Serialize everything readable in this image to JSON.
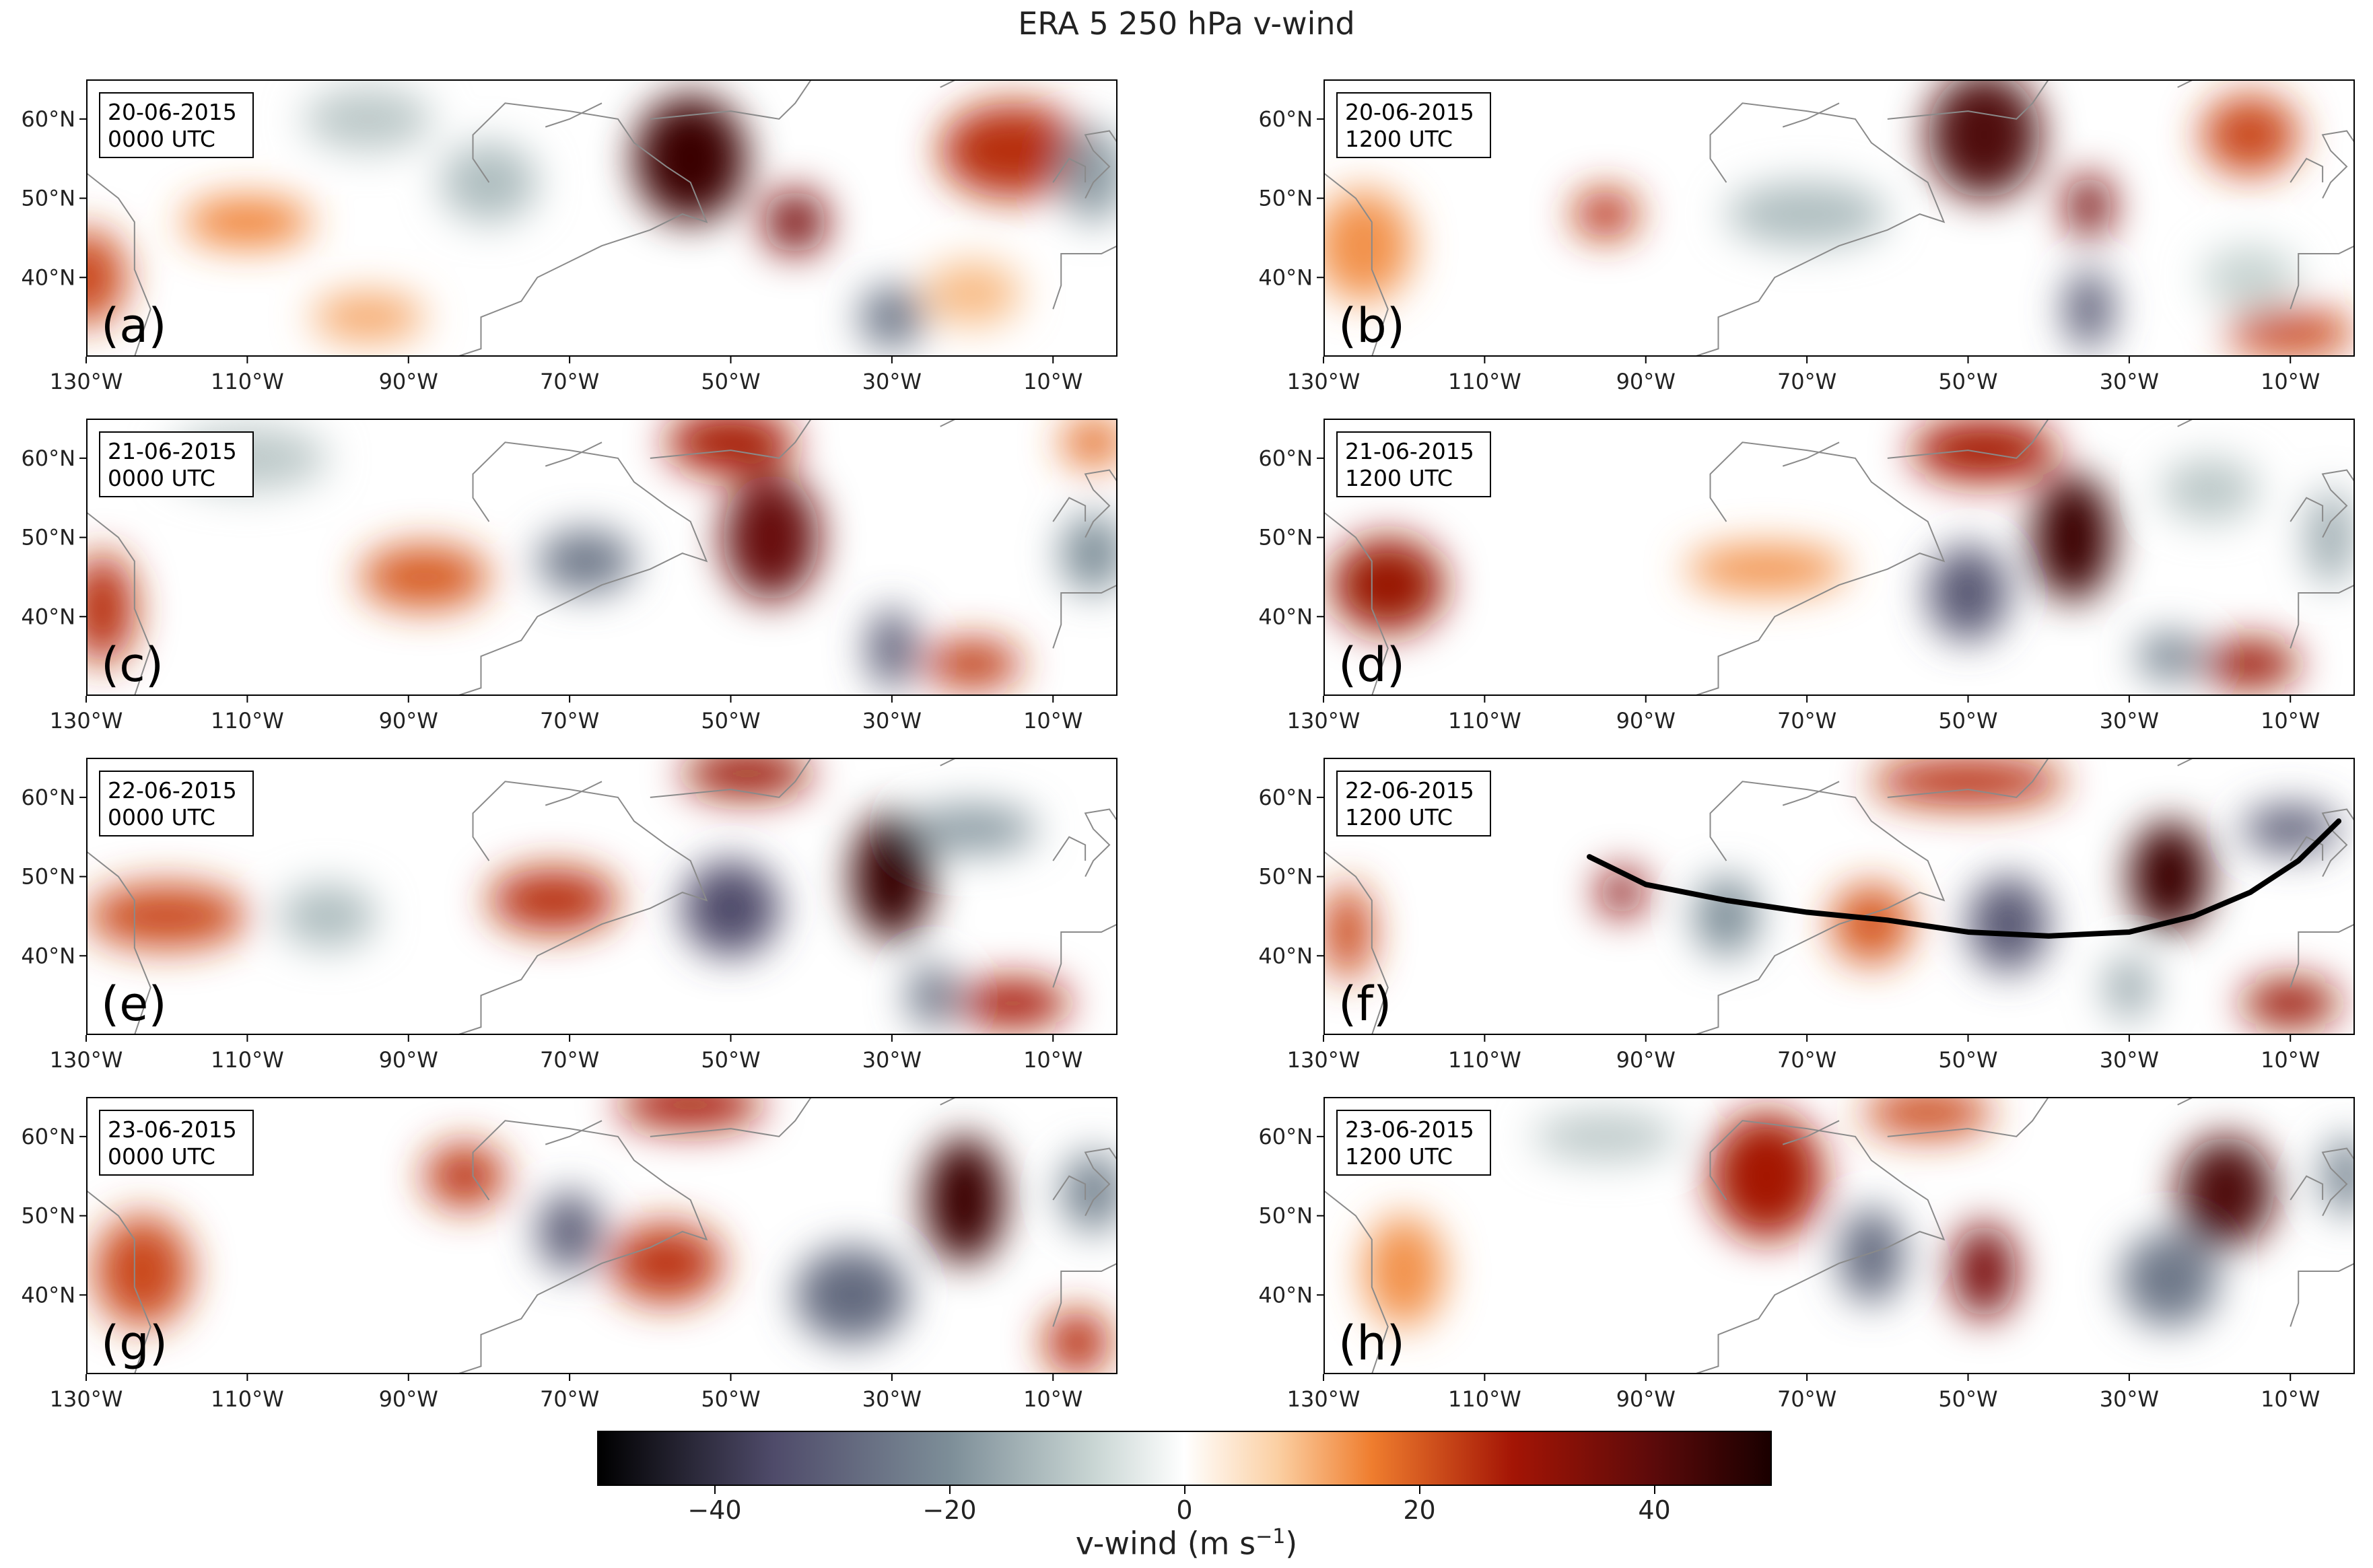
{
  "title": "ERA 5 250 hPa v-wind",
  "chart_data": {
    "type": "heatmap",
    "title": "ERA 5 250 hPa v-wind",
    "projection": "lon-lat map",
    "xlim": [
      -130,
      -2
    ],
    "ylim": [
      30,
      65
    ],
    "x_ticks": [
      -130,
      -110,
      -90,
      -70,
      -50,
      -30,
      -10
    ],
    "x_tick_labels": [
      "130°W",
      "110°W",
      "90°W",
      "70°W",
      "50°W",
      "30°W",
      "10°W"
    ],
    "y_ticks": [
      40,
      50,
      60
    ],
    "y_tick_labels": [
      "40°N",
      "50°N",
      "60°N"
    ],
    "colormap": {
      "range": [
        -50,
        50
      ],
      "stops": [
        {
          "v": -50,
          "c": "#000000"
        },
        {
          "v": -35,
          "c": "#4f4b6a"
        },
        {
          "v": -20,
          "c": "#7d8e98"
        },
        {
          "v": -8,
          "c": "#c7d4d2"
        },
        {
          "v": 0,
          "c": "#ffffff"
        },
        {
          "v": 8,
          "c": "#fbcfa2"
        },
        {
          "v": 16,
          "c": "#ef7d2e"
        },
        {
          "v": 28,
          "c": "#a41505"
        },
        {
          "v": 40,
          "c": "#5c0a0a"
        },
        {
          "v": 50,
          "c": "#1a0000"
        }
      ]
    },
    "colorbar": {
      "ticks": [
        -40,
        -20,
        0,
        20,
        40
      ],
      "tick_labels": [
        "−40",
        "−20",
        "0",
        "20",
        "40"
      ],
      "label_main": "v-wind (m s",
      "label_sup": "−1",
      "label_end": ")"
    },
    "panels": [
      {
        "letter": "(a)",
        "date": "20-06-2015",
        "time": "0000 UTC",
        "features": [
          {
            "lon": -55,
            "lat": 55,
            "v": 45,
            "rx": 7,
            "ry": 8
          },
          {
            "lon": -42,
            "lat": 47,
            "v": 35,
            "rx": 4,
            "ry": 4
          },
          {
            "lon": -15,
            "lat": 56,
            "v": 25,
            "rx": 9,
            "ry": 6
          },
          {
            "lon": -130,
            "lat": 40,
            "v": 22,
            "rx": 5,
            "ry": 6
          },
          {
            "lon": -110,
            "lat": 47,
            "v": 16,
            "rx": 8,
            "ry": 3
          },
          {
            "lon": -95,
            "lat": 35,
            "v": 12,
            "rx": 7,
            "ry": 3
          },
          {
            "lon": -20,
            "lat": 38,
            "v": 10,
            "rx": 6,
            "ry": 4
          },
          {
            "lon": -30,
            "lat": 35,
            "v": -25,
            "rx": 4,
            "ry": 4
          },
          {
            "lon": -80,
            "lat": 52,
            "v": -12,
            "rx": 6,
            "ry": 5
          },
          {
            "lon": -5,
            "lat": 53,
            "v": -18,
            "rx": 4,
            "ry": 6
          },
          {
            "lon": -95,
            "lat": 60,
            "v": -10,
            "rx": 8,
            "ry": 4
          }
        ]
      },
      {
        "letter": "(b)",
        "date": "20-06-2015",
        "time": "1200 UTC",
        "features": [
          {
            "lon": -48,
            "lat": 58,
            "v": 42,
            "rx": 7,
            "ry": 8
          },
          {
            "lon": -35,
            "lat": 49,
            "v": 35,
            "rx": 3,
            "ry": 4
          },
          {
            "lon": -15,
            "lat": 58,
            "v": 22,
            "rx": 6,
            "ry": 5
          },
          {
            "lon": -95,
            "lat": 48,
            "v": 25,
            "rx": 4,
            "ry": 3
          },
          {
            "lon": -125,
            "lat": 44,
            "v": 14,
            "rx": 6,
            "ry": 7
          },
          {
            "lon": -10,
            "lat": 33,
            "v": 22,
            "rx": 8,
            "ry": 3
          },
          {
            "lon": -70,
            "lat": 48,
            "v": -12,
            "rx": 10,
            "ry": 4
          },
          {
            "lon": -35,
            "lat": 36,
            "v": -30,
            "rx": 3,
            "ry": 5
          },
          {
            "lon": -15,
            "lat": 40,
            "v": -8,
            "rx": 6,
            "ry": 4
          }
        ]
      },
      {
        "letter": "(c)",
        "date": "21-06-2015",
        "time": "0000 UTC",
        "features": [
          {
            "lon": -45,
            "lat": 50,
            "v": 38,
            "rx": 6,
            "ry": 8
          },
          {
            "lon": -50,
            "lat": 62,
            "v": 28,
            "rx": 8,
            "ry": 4
          },
          {
            "lon": -128,
            "lat": 41,
            "v": 25,
            "rx": 4,
            "ry": 7
          },
          {
            "lon": -88,
            "lat": 45,
            "v": 20,
            "rx": 8,
            "ry": 4
          },
          {
            "lon": -20,
            "lat": 34,
            "v": 24,
            "rx": 6,
            "ry": 3
          },
          {
            "lon": -5,
            "lat": 62,
            "v": 18,
            "rx": 4,
            "ry": 3
          },
          {
            "lon": -68,
            "lat": 47,
            "v": -25,
            "rx": 6,
            "ry": 4
          },
          {
            "lon": -30,
            "lat": 36,
            "v": -30,
            "rx": 3,
            "ry": 5
          },
          {
            "lon": -5,
            "lat": 48,
            "v": -20,
            "rx": 4,
            "ry": 5
          },
          {
            "lon": -110,
            "lat": 60,
            "v": -10,
            "rx": 10,
            "ry": 4
          }
        ]
      },
      {
        "letter": "(d)",
        "date": "21-06-2015",
        "time": "1200 UTC",
        "features": [
          {
            "lon": -37,
            "lat": 50,
            "v": 45,
            "rx": 5,
            "ry": 8
          },
          {
            "lon": -48,
            "lat": 61,
            "v": 28,
            "rx": 9,
            "ry": 4
          },
          {
            "lon": -122,
            "lat": 44,
            "v": 30,
            "rx": 7,
            "ry": 6
          },
          {
            "lon": -75,
            "lat": 46,
            "v": 14,
            "rx": 10,
            "ry": 3
          },
          {
            "lon": -15,
            "lat": 34,
            "v": 30,
            "rx": 6,
            "ry": 3
          },
          {
            "lon": -50,
            "lat": 43,
            "v": -32,
            "rx": 5,
            "ry": 6
          },
          {
            "lon": -25,
            "lat": 35,
            "v": -22,
            "rx": 4,
            "ry": 3
          },
          {
            "lon": -20,
            "lat": 56,
            "v": -10,
            "rx": 6,
            "ry": 4
          },
          {
            "lon": -5,
            "lat": 50,
            "v": -15,
            "rx": 3,
            "ry": 6
          }
        ]
      },
      {
        "letter": "(e)",
        "date": "22-06-2015",
        "time": "0000 UTC",
        "features": [
          {
            "lon": -30,
            "lat": 50,
            "v": 46,
            "rx": 5,
            "ry": 8
          },
          {
            "lon": -48,
            "lat": 63,
            "v": 30,
            "rx": 8,
            "ry": 3
          },
          {
            "lon": -120,
            "lat": 45,
            "v": 22,
            "rx": 10,
            "ry": 4
          },
          {
            "lon": -72,
            "lat": 47,
            "v": 25,
            "rx": 8,
            "ry": 4
          },
          {
            "lon": -15,
            "lat": 34,
            "v": 28,
            "rx": 7,
            "ry": 3
          },
          {
            "lon": -50,
            "lat": 46,
            "v": -35,
            "rx": 6,
            "ry": 6
          },
          {
            "lon": -100,
            "lat": 45,
            "v": -12,
            "rx": 6,
            "ry": 4
          },
          {
            "lon": -20,
            "lat": 56,
            "v": -18,
            "rx": 8,
            "ry": 3
          },
          {
            "lon": -25,
            "lat": 35,
            "v": -25,
            "rx": 3,
            "ry": 4
          }
        ]
      },
      {
        "letter": "(f)",
        "date": "22-06-2015",
        "time": "1200 UTC",
        "features": [
          {
            "lon": -25,
            "lat": 50,
            "v": 45,
            "rx": 5,
            "ry": 7
          },
          {
            "lon": -50,
            "lat": 62,
            "v": 25,
            "rx": 12,
            "ry": 3
          },
          {
            "lon": -93,
            "lat": 48,
            "v": 32,
            "rx": 3,
            "ry": 3
          },
          {
            "lon": -62,
            "lat": 44,
            "v": 20,
            "rx": 5,
            "ry": 5
          },
          {
            "lon": -127,
            "lat": 43,
            "v": 22,
            "rx": 3,
            "ry": 6
          },
          {
            "lon": -10,
            "lat": 34,
            "v": 30,
            "rx": 6,
            "ry": 3
          },
          {
            "lon": -45,
            "lat": 44,
            "v": -32,
            "rx": 5,
            "ry": 6
          },
          {
            "lon": -80,
            "lat": 45,
            "v": -20,
            "rx": 4,
            "ry": 5
          },
          {
            "lon": -10,
            "lat": 56,
            "v": -30,
            "rx": 6,
            "ry": 3
          },
          {
            "lon": -30,
            "lat": 36,
            "v": -15,
            "rx": 3,
            "ry": 4
          }
        ],
        "trajectory": [
          [
            -97,
            52.5
          ],
          [
            -90,
            49
          ],
          [
            -80,
            47
          ],
          [
            -70,
            45.5
          ],
          [
            -60,
            44.5
          ],
          [
            -50,
            43
          ],
          [
            -40,
            42.5
          ],
          [
            -30,
            43
          ],
          [
            -22,
            45
          ],
          [
            -15,
            48
          ],
          [
            -9,
            52
          ],
          [
            -4,
            57
          ]
        ]
      },
      {
        "letter": "(g)",
        "date": "23-06-2015",
        "time": "0000 UTC",
        "features": [
          {
            "lon": -21,
            "lat": 52,
            "v": 45,
            "rx": 5,
            "ry": 8
          },
          {
            "lon": -55,
            "lat": 64,
            "v": 28,
            "rx": 9,
            "ry": 3
          },
          {
            "lon": -123,
            "lat": 43,
            "v": 22,
            "rx": 6,
            "ry": 7
          },
          {
            "lon": -83,
            "lat": 55,
            "v": 24,
            "rx": 5,
            "ry": 4
          },
          {
            "lon": -58,
            "lat": 44,
            "v": 24,
            "rx": 7,
            "ry": 5
          },
          {
            "lon": -7,
            "lat": 34,
            "v": 25,
            "rx": 4,
            "ry": 4
          },
          {
            "lon": -70,
            "lat": 48,
            "v": -30,
            "rx": 4,
            "ry": 5
          },
          {
            "lon": -35,
            "lat": 40,
            "v": -28,
            "rx": 7,
            "ry": 6
          },
          {
            "lon": -5,
            "lat": 53,
            "v": -22,
            "rx": 4,
            "ry": 5
          }
        ]
      },
      {
        "letter": "(h)",
        "date": "23-06-2015",
        "time": "1200 UTC",
        "features": [
          {
            "lon": -18,
            "lat": 53,
            "v": 42,
            "rx": 6,
            "ry": 7
          },
          {
            "lon": -48,
            "lat": 43,
            "v": 35,
            "rx": 4,
            "ry": 6
          },
          {
            "lon": -75,
            "lat": 55,
            "v": 28,
            "rx": 7,
            "ry": 8
          },
          {
            "lon": -55,
            "lat": 63,
            "v": 22,
            "rx": 8,
            "ry": 3
          },
          {
            "lon": -120,
            "lat": 43,
            "v": 14,
            "rx": 5,
            "ry": 7
          },
          {
            "lon": -62,
            "lat": 45,
            "v": -28,
            "rx": 4,
            "ry": 6
          },
          {
            "lon": -25,
            "lat": 42,
            "v": -25,
            "rx": 6,
            "ry": 6
          },
          {
            "lon": -3,
            "lat": 55,
            "v": -22,
            "rx": 3,
            "ry": 5
          },
          {
            "lon": -95,
            "lat": 60,
            "v": -10,
            "rx": 9,
            "ry": 3
          }
        ]
      }
    ]
  }
}
